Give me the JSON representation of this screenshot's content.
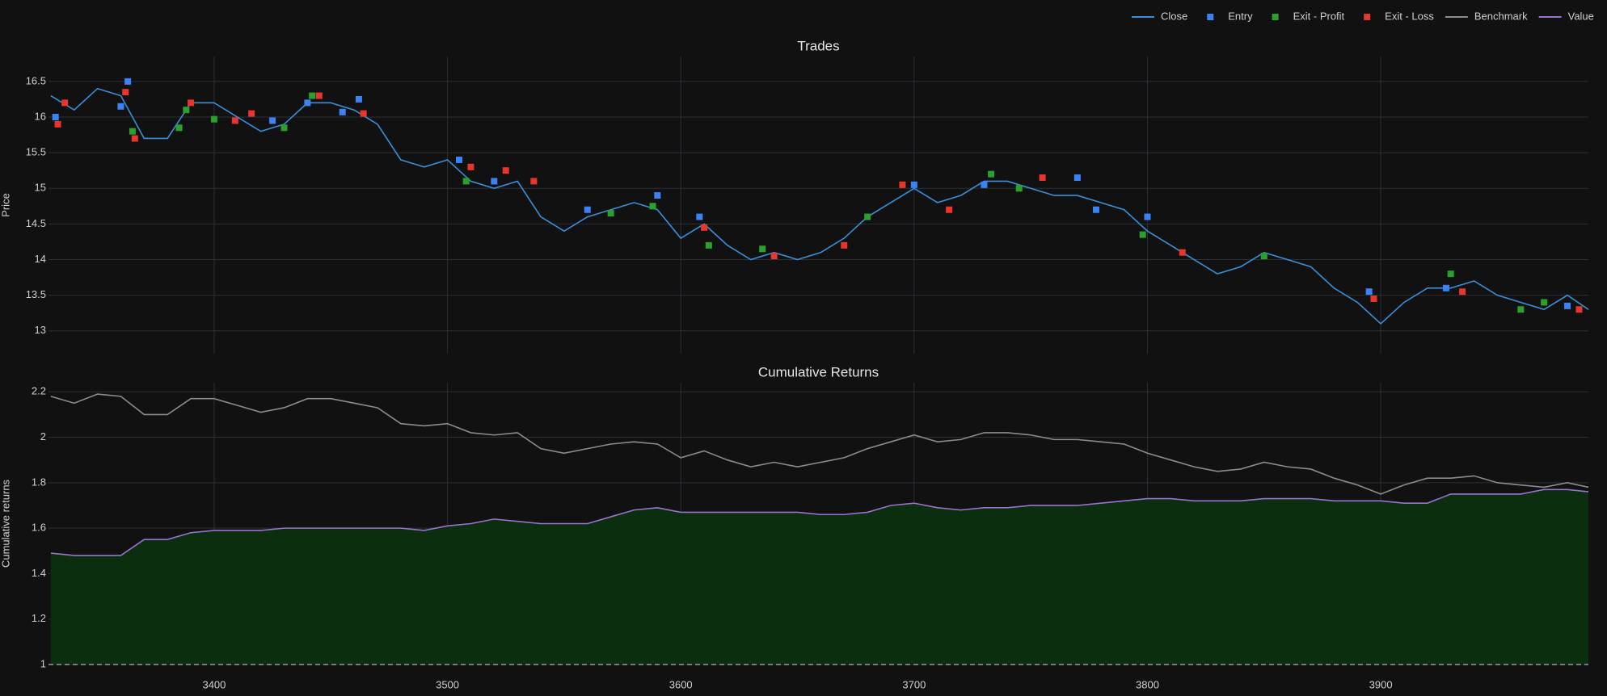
{
  "chart_data": [
    {
      "type": "line",
      "title": "Trades",
      "y_label": "Price",
      "xlim": [
        3329,
        3989
      ],
      "ylim": [
        12.68,
        16.85
      ],
      "xticks": [
        3400,
        3500,
        3600,
        3700,
        3800,
        3900
      ],
      "yticks": [
        13,
        13.5,
        14,
        14.5,
        15,
        15.5,
        16,
        16.5
      ],
      "grid": true,
      "series": [
        {
          "name": "Close",
          "mode": "lines",
          "color": "#3a8fd9",
          "x": [
            3330,
            3340,
            3350,
            3360,
            3370,
            3380,
            3390,
            3400,
            3410,
            3420,
            3430,
            3440,
            3450,
            3460,
            3470,
            3480,
            3490,
            3500,
            3510,
            3520,
            3530,
            3540,
            3550,
            3560,
            3570,
            3580,
            3590,
            3600,
            3610,
            3620,
            3630,
            3640,
            3650,
            3660,
            3670,
            3680,
            3690,
            3700,
            3710,
            3720,
            3730,
            3740,
            3750,
            3760,
            3770,
            3780,
            3790,
            3800,
            3810,
            3820,
            3830,
            3840,
            3850,
            3860,
            3870,
            3880,
            3890,
            3900,
            3910,
            3920,
            3930,
            3940,
            3950,
            3960,
            3970,
            3980,
            3989
          ],
          "values": [
            16.3,
            16.1,
            16.4,
            16.3,
            15.7,
            15.7,
            16.2,
            16.2,
            16.0,
            15.8,
            15.9,
            16.2,
            16.2,
            16.1,
            15.9,
            15.4,
            15.3,
            15.4,
            15.1,
            15.0,
            15.1,
            14.6,
            14.4,
            14.6,
            14.7,
            14.8,
            14.7,
            14.3,
            14.5,
            14.2,
            14.0,
            14.1,
            14.0,
            14.1,
            14.3,
            14.6,
            14.8,
            15.0,
            14.8,
            14.9,
            15.1,
            15.1,
            15.0,
            14.9,
            14.9,
            14.8,
            14.7,
            14.4,
            14.2,
            14.0,
            13.8,
            13.9,
            14.1,
            14.0,
            13.9,
            13.6,
            13.4,
            13.1,
            13.4,
            13.6,
            13.6,
            13.7,
            13.5,
            13.4,
            13.3,
            13.5,
            13.3
          ]
        },
        {
          "name": "Entry",
          "mode": "markers",
          "color": "#3b82f6",
          "x": [
            3332,
            3360,
            3363,
            3425,
            3440,
            3455,
            3462,
            3505,
            3520,
            3560,
            3590,
            3608,
            3700,
            3730,
            3770,
            3778,
            3800,
            3895,
            3928,
            3980
          ],
          "values": [
            16.0,
            16.15,
            16.5,
            15.95,
            16.2,
            16.07,
            16.25,
            15.4,
            15.1,
            14.7,
            14.9,
            14.6,
            15.05,
            15.05,
            15.15,
            14.7,
            14.6,
            13.55,
            13.6,
            13.35
          ]
        },
        {
          "name": "Exit - Profit",
          "mode": "markers",
          "color": "#2ca02c",
          "x": [
            3365,
            3385,
            3388,
            3400,
            3430,
            3442,
            3508,
            3570,
            3588,
            3612,
            3635,
            3680,
            3733,
            3745,
            3798,
            3850,
            3930,
            3960,
            3970
          ],
          "values": [
            15.8,
            15.85,
            16.1,
            15.97,
            15.85,
            16.3,
            15.1,
            14.65,
            14.75,
            14.2,
            14.15,
            14.6,
            15.2,
            15.0,
            14.35,
            14.05,
            13.8,
            13.3,
            13.4
          ]
        },
        {
          "name": "Exit - Loss",
          "mode": "markers",
          "color": "#e8352e",
          "x": [
            3333,
            3336,
            3362,
            3366,
            3390,
            3409,
            3416,
            3445,
            3464,
            3510,
            3525,
            3537,
            3610,
            3640,
            3670,
            3695,
            3715,
            3755,
            3815,
            3897,
            3935,
            3985
          ],
          "values": [
            15.9,
            16.2,
            16.35,
            15.7,
            16.2,
            15.95,
            16.05,
            16.3,
            16.05,
            15.3,
            15.25,
            15.1,
            14.45,
            14.05,
            14.2,
            15.05,
            14.7,
            15.15,
            14.1,
            13.45,
            13.55,
            13.3
          ]
        }
      ]
    },
    {
      "type": "line",
      "title": "Cumulative Returns",
      "y_label": "Cumulative returns",
      "xlim": [
        3329,
        3989
      ],
      "ylim": [
        1,
        2.24
      ],
      "xticks": [
        3400,
        3500,
        3600,
        3700,
        3800,
        3900
      ],
      "yticks": [
        1,
        1.2,
        1.4,
        1.6,
        1.8,
        2,
        2.2
      ],
      "grid": true,
      "hline": 1,
      "series": [
        {
          "name": "Benchmark",
          "mode": "lines",
          "color": "#8c8c8c",
          "x": [
            3330,
            3340,
            3350,
            3360,
            3370,
            3380,
            3390,
            3400,
            3410,
            3420,
            3430,
            3440,
            3450,
            3460,
            3470,
            3480,
            3490,
            3500,
            3510,
            3520,
            3530,
            3540,
            3550,
            3560,
            3570,
            3580,
            3590,
            3600,
            3610,
            3620,
            3630,
            3640,
            3650,
            3660,
            3670,
            3680,
            3690,
            3700,
            3710,
            3720,
            3730,
            3740,
            3750,
            3760,
            3770,
            3780,
            3790,
            3800,
            3810,
            3820,
            3830,
            3840,
            3850,
            3860,
            3870,
            3880,
            3890,
            3900,
            3910,
            3920,
            3930,
            3940,
            3950,
            3960,
            3970,
            3980,
            3989
          ],
          "values": [
            2.18,
            2.15,
            2.19,
            2.18,
            2.1,
            2.1,
            2.17,
            2.17,
            2.14,
            2.11,
            2.13,
            2.17,
            2.17,
            2.15,
            2.13,
            2.06,
            2.05,
            2.06,
            2.02,
            2.01,
            2.02,
            1.95,
            1.93,
            1.95,
            1.97,
            1.98,
            1.97,
            1.91,
            1.94,
            1.9,
            1.87,
            1.89,
            1.87,
            1.89,
            1.91,
            1.95,
            1.98,
            2.01,
            1.98,
            1.99,
            2.02,
            2.02,
            2.01,
            1.99,
            1.99,
            1.98,
            1.97,
            1.93,
            1.9,
            1.87,
            1.85,
            1.86,
            1.89,
            1.87,
            1.86,
            1.82,
            1.79,
            1.75,
            1.79,
            1.82,
            1.82,
            1.83,
            1.8,
            1.79,
            1.78,
            1.8,
            1.78
          ]
        },
        {
          "name": "Value",
          "mode": "lines",
          "color": "#9b72d0",
          "fill_color": "#0b2e0f",
          "x": [
            3330,
            3340,
            3350,
            3360,
            3370,
            3380,
            3390,
            3400,
            3410,
            3420,
            3430,
            3440,
            3450,
            3460,
            3470,
            3480,
            3490,
            3500,
            3510,
            3520,
            3530,
            3540,
            3550,
            3560,
            3570,
            3580,
            3590,
            3600,
            3610,
            3620,
            3630,
            3640,
            3650,
            3660,
            3670,
            3680,
            3690,
            3700,
            3710,
            3720,
            3730,
            3740,
            3750,
            3760,
            3770,
            3780,
            3790,
            3800,
            3810,
            3820,
            3830,
            3840,
            3850,
            3860,
            3870,
            3880,
            3890,
            3900,
            3910,
            3920,
            3930,
            3940,
            3950,
            3960,
            3970,
            3980,
            3989
          ],
          "values": [
            1.49,
            1.48,
            1.48,
            1.48,
            1.55,
            1.55,
            1.58,
            1.59,
            1.59,
            1.59,
            1.6,
            1.6,
            1.6,
            1.6,
            1.6,
            1.6,
            1.59,
            1.61,
            1.62,
            1.64,
            1.63,
            1.62,
            1.62,
            1.62,
            1.65,
            1.68,
            1.69,
            1.67,
            1.67,
            1.67,
            1.67,
            1.67,
            1.67,
            1.66,
            1.66,
            1.67,
            1.7,
            1.71,
            1.69,
            1.68,
            1.69,
            1.69,
            1.7,
            1.7,
            1.7,
            1.71,
            1.72,
            1.73,
            1.73,
            1.72,
            1.72,
            1.72,
            1.73,
            1.73,
            1.73,
            1.72,
            1.72,
            1.72,
            1.71,
            1.71,
            1.75,
            1.75,
            1.75,
            1.75,
            1.77,
            1.77,
            1.76
          ]
        }
      ]
    }
  ]
}
